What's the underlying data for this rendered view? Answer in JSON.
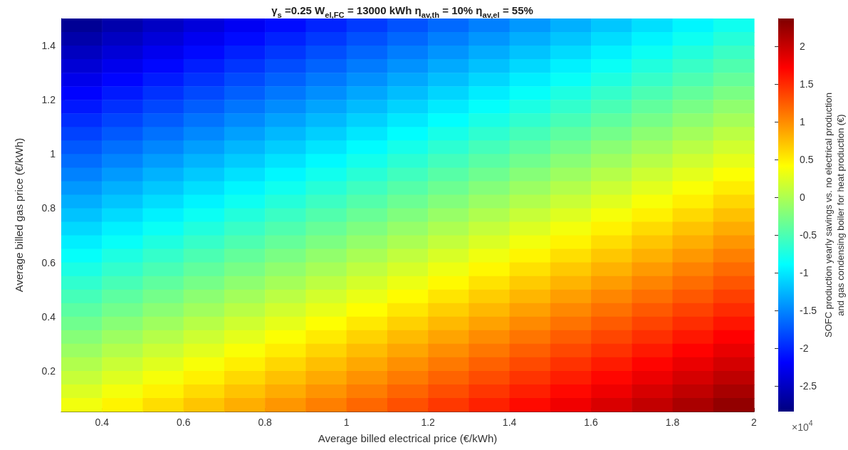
{
  "chart_data": {
    "type": "heatmap",
    "title": "γ$_{s}$ =0.25 W$_{el,FC}$ = 13000 kWh η$_{av,th}$ = 10% η$_{av,el}$ = 55%",
    "xlabel": "Average billed electrical price (€/kWh)",
    "ylabel": "Average billed gas price (€/kWh)",
    "clabel": "SOFC production yearly savings vs. no electrical production\nand gas condensing boiler for heat production (€)",
    "annotations": [
      "×10$^{4}$"
    ],
    "xlim": [
      0.3,
      2
    ],
    "xticks": [
      0.4,
      0.6,
      0.8,
      1,
      1.2,
      1.4,
      1.6,
      1.8,
      2
    ],
    "ylim": [
      0.05,
      1.5
    ],
    "yticks": [
      0.2,
      0.4,
      0.6,
      0.8,
      1,
      1.2,
      1.4
    ],
    "clim": [
      -2.84,
      2.37
    ],
    "cticks": [
      -2.5,
      -2,
      -1.5,
      -1,
      -0.5,
      0,
      0.5,
      1,
      1.5,
      2
    ],
    "grid": false,
    "cells": [
      [
        -2.73,
        -2.61,
        -2.49,
        -2.37,
        -2.25,
        -2.13,
        -2.01,
        -1.89,
        -1.77,
        -1.65,
        -1.53,
        -1.41,
        -1.29,
        -1.17,
        -1.05,
        -0.93,
        -0.81
      ],
      [
        -2.62,
        -2.5,
        -2.38,
        -2.26,
        -2.14,
        -2.02,
        -1.9,
        -1.78,
        -1.66,
        -1.54,
        -1.42,
        -1.3,
        -1.18,
        -1.06,
        -0.94,
        -0.82,
        -0.7
      ],
      [
        -2.51,
        -2.39,
        -2.27,
        -2.15,
        -2.03,
        -1.91,
        -1.79,
        -1.67,
        -1.55,
        -1.43,
        -1.31,
        -1.19,
        -1.07,
        -0.95,
        -0.83,
        -0.71,
        -0.59
      ],
      [
        -2.4,
        -2.28,
        -2.16,
        -2.04,
        -1.92,
        -1.8,
        -1.68,
        -1.56,
        -1.44,
        -1.32,
        -1.2,
        -1.08,
        -0.96,
        -0.84,
        -0.72,
        -0.6,
        -0.48
      ],
      [
        -2.29,
        -2.17,
        -2.05,
        -1.93,
        -1.81,
        -1.69,
        -1.57,
        -1.45,
        -1.33,
        -1.21,
        -1.09,
        -0.97,
        -0.85,
        -0.73,
        -0.61,
        -0.49,
        -0.37
      ],
      [
        -2.18,
        -2.06,
        -1.94,
        -1.82,
        -1.7,
        -1.58,
        -1.46,
        -1.34,
        -1.22,
        -1.1,
        -0.98,
        -0.86,
        -0.74,
        -0.62,
        -0.5,
        -0.38,
        -0.26
      ],
      [
        -2.07,
        -1.95,
        -1.83,
        -1.71,
        -1.59,
        -1.47,
        -1.35,
        -1.23,
        -1.11,
        -0.99,
        -0.87,
        -0.75,
        -0.63,
        -0.51,
        -0.39,
        -0.27,
        -0.15
      ],
      [
        -1.96,
        -1.84,
        -1.72,
        -1.6,
        -1.48,
        -1.36,
        -1.24,
        -1.12,
        -1.0,
        -0.88,
        -0.76,
        -0.64,
        -0.52,
        -0.4,
        -0.28,
        -0.16,
        -0.04
      ],
      [
        -1.85,
        -1.73,
        -1.61,
        -1.49,
        -1.37,
        -1.25,
        -1.13,
        -1.01,
        -0.89,
        -0.77,
        -0.65,
        -0.53,
        -0.41,
        -0.29,
        -0.17,
        -0.05,
        0.07
      ],
      [
        -1.74,
        -1.62,
        -1.5,
        -1.38,
        -1.26,
        -1.14,
        -1.02,
        -0.9,
        -0.78,
        -0.66,
        -0.54,
        -0.42,
        -0.3,
        -0.18,
        -0.06,
        0.06,
        0.18
      ],
      [
        -1.63,
        -1.51,
        -1.39,
        -1.27,
        -1.15,
        -1.03,
        -0.91,
        -0.79,
        -0.67,
        -0.55,
        -0.43,
        -0.31,
        -0.19,
        -0.07,
        0.05,
        0.17,
        0.29
      ],
      [
        -1.52,
        -1.4,
        -1.28,
        -1.16,
        -1.04,
        -0.92,
        -0.8,
        -0.68,
        -0.56,
        -0.44,
        -0.32,
        -0.2,
        -0.08,
        0.04,
        0.16,
        0.28,
        0.4
      ],
      [
        -1.41,
        -1.29,
        -1.17,
        -1.05,
        -0.93,
        -0.81,
        -0.69,
        -0.57,
        -0.45,
        -0.33,
        -0.21,
        -0.09,
        0.03,
        0.15,
        0.27,
        0.39,
        0.51
      ],
      [
        -1.3,
        -1.18,
        -1.06,
        -0.94,
        -0.82,
        -0.7,
        -0.58,
        -0.46,
        -0.34,
        -0.22,
        -0.1,
        0.02,
        0.14,
        0.26,
        0.38,
        0.5,
        0.62
      ],
      [
        -1.19,
        -1.07,
        -0.95,
        -0.83,
        -0.71,
        -0.59,
        -0.47,
        -0.35,
        -0.23,
        -0.11,
        0.01,
        0.13,
        0.25,
        0.37,
        0.49,
        0.61,
        0.73
      ],
      [
        -1.08,
        -0.96,
        -0.84,
        -0.72,
        -0.6,
        -0.48,
        -0.36,
        -0.24,
        -0.12,
        0,
        0.12,
        0.24,
        0.36,
        0.48,
        0.6,
        0.72,
        0.84
      ],
      [
        -0.97,
        -0.85,
        -0.73,
        -0.61,
        -0.49,
        -0.37,
        -0.25,
        -0.13,
        -0.01,
        0.11,
        0.23,
        0.35,
        0.47,
        0.59,
        0.71,
        0.83,
        0.95
      ],
      [
        -0.86,
        -0.74,
        -0.62,
        -0.5,
        -0.38,
        -0.26,
        -0.14,
        -0.02,
        0.1,
        0.22,
        0.34,
        0.46,
        0.58,
        0.7,
        0.82,
        0.94,
        1.06
      ],
      [
        -0.75,
        -0.63,
        -0.51,
        -0.39,
        -0.27,
        -0.15,
        -0.03,
        0.09,
        0.21,
        0.33,
        0.45,
        0.57,
        0.69,
        0.81,
        0.93,
        1.05,
        1.17
      ],
      [
        -0.64,
        -0.52,
        -0.4,
        -0.28,
        -0.16,
        -0.04,
        0.08,
        0.2,
        0.32,
        0.44,
        0.56,
        0.68,
        0.8,
        0.92,
        1.04,
        1.16,
        1.28
      ],
      [
        -0.53,
        -0.41,
        -0.29,
        -0.17,
        -0.05,
        0.07,
        0.19,
        0.31,
        0.43,
        0.55,
        0.67,
        0.79,
        0.91,
        1.03,
        1.15,
        1.27,
        1.39
      ],
      [
        -0.42,
        -0.3,
        -0.18,
        -0.06,
        0.06,
        0.18,
        0.3,
        0.42,
        0.54,
        0.66,
        0.78,
        0.9,
        1.02,
        1.14,
        1.26,
        1.38,
        1.5
      ],
      [
        -0.31,
        -0.19,
        -0.07,
        0.05,
        0.17,
        0.29,
        0.41,
        0.53,
        0.65,
        0.77,
        0.89,
        1.01,
        1.13,
        1.25,
        1.37,
        1.49,
        1.61
      ],
      [
        -0.2,
        -0.08,
        0.04,
        0.16,
        0.28,
        0.4,
        0.52,
        0.64,
        0.76,
        0.88,
        1.0,
        1.12,
        1.24,
        1.36,
        1.48,
        1.6,
        1.72
      ],
      [
        -0.09,
        0.03,
        0.15,
        0.27,
        0.39,
        0.51,
        0.63,
        0.75,
        0.87,
        0.99,
        1.11,
        1.23,
        1.35,
        1.47,
        1.59,
        1.71,
        1.83
      ],
      [
        0.02,
        0.14,
        0.26,
        0.38,
        0.5,
        0.62,
        0.74,
        0.86,
        0.98,
        1.1,
        1.22,
        1.34,
        1.46,
        1.58,
        1.7,
        1.82,
        1.94
      ],
      [
        0.13,
        0.25,
        0.37,
        0.49,
        0.61,
        0.73,
        0.85,
        0.97,
        1.09,
        1.21,
        1.33,
        1.45,
        1.57,
        1.69,
        1.81,
        1.93,
        2.05
      ],
      [
        0.24,
        0.36,
        0.48,
        0.6,
        0.72,
        0.84,
        0.96,
        1.08,
        1.2,
        1.32,
        1.44,
        1.56,
        1.68,
        1.8,
        1.92,
        2.04,
        2.16
      ],
      [
        0.35,
        0.47,
        0.59,
        0.71,
        0.83,
        0.95,
        1.07,
        1.19,
        1.31,
        1.43,
        1.55,
        1.67,
        1.79,
        1.91,
        2.03,
        2.15,
        2.27
      ]
    ]
  }
}
